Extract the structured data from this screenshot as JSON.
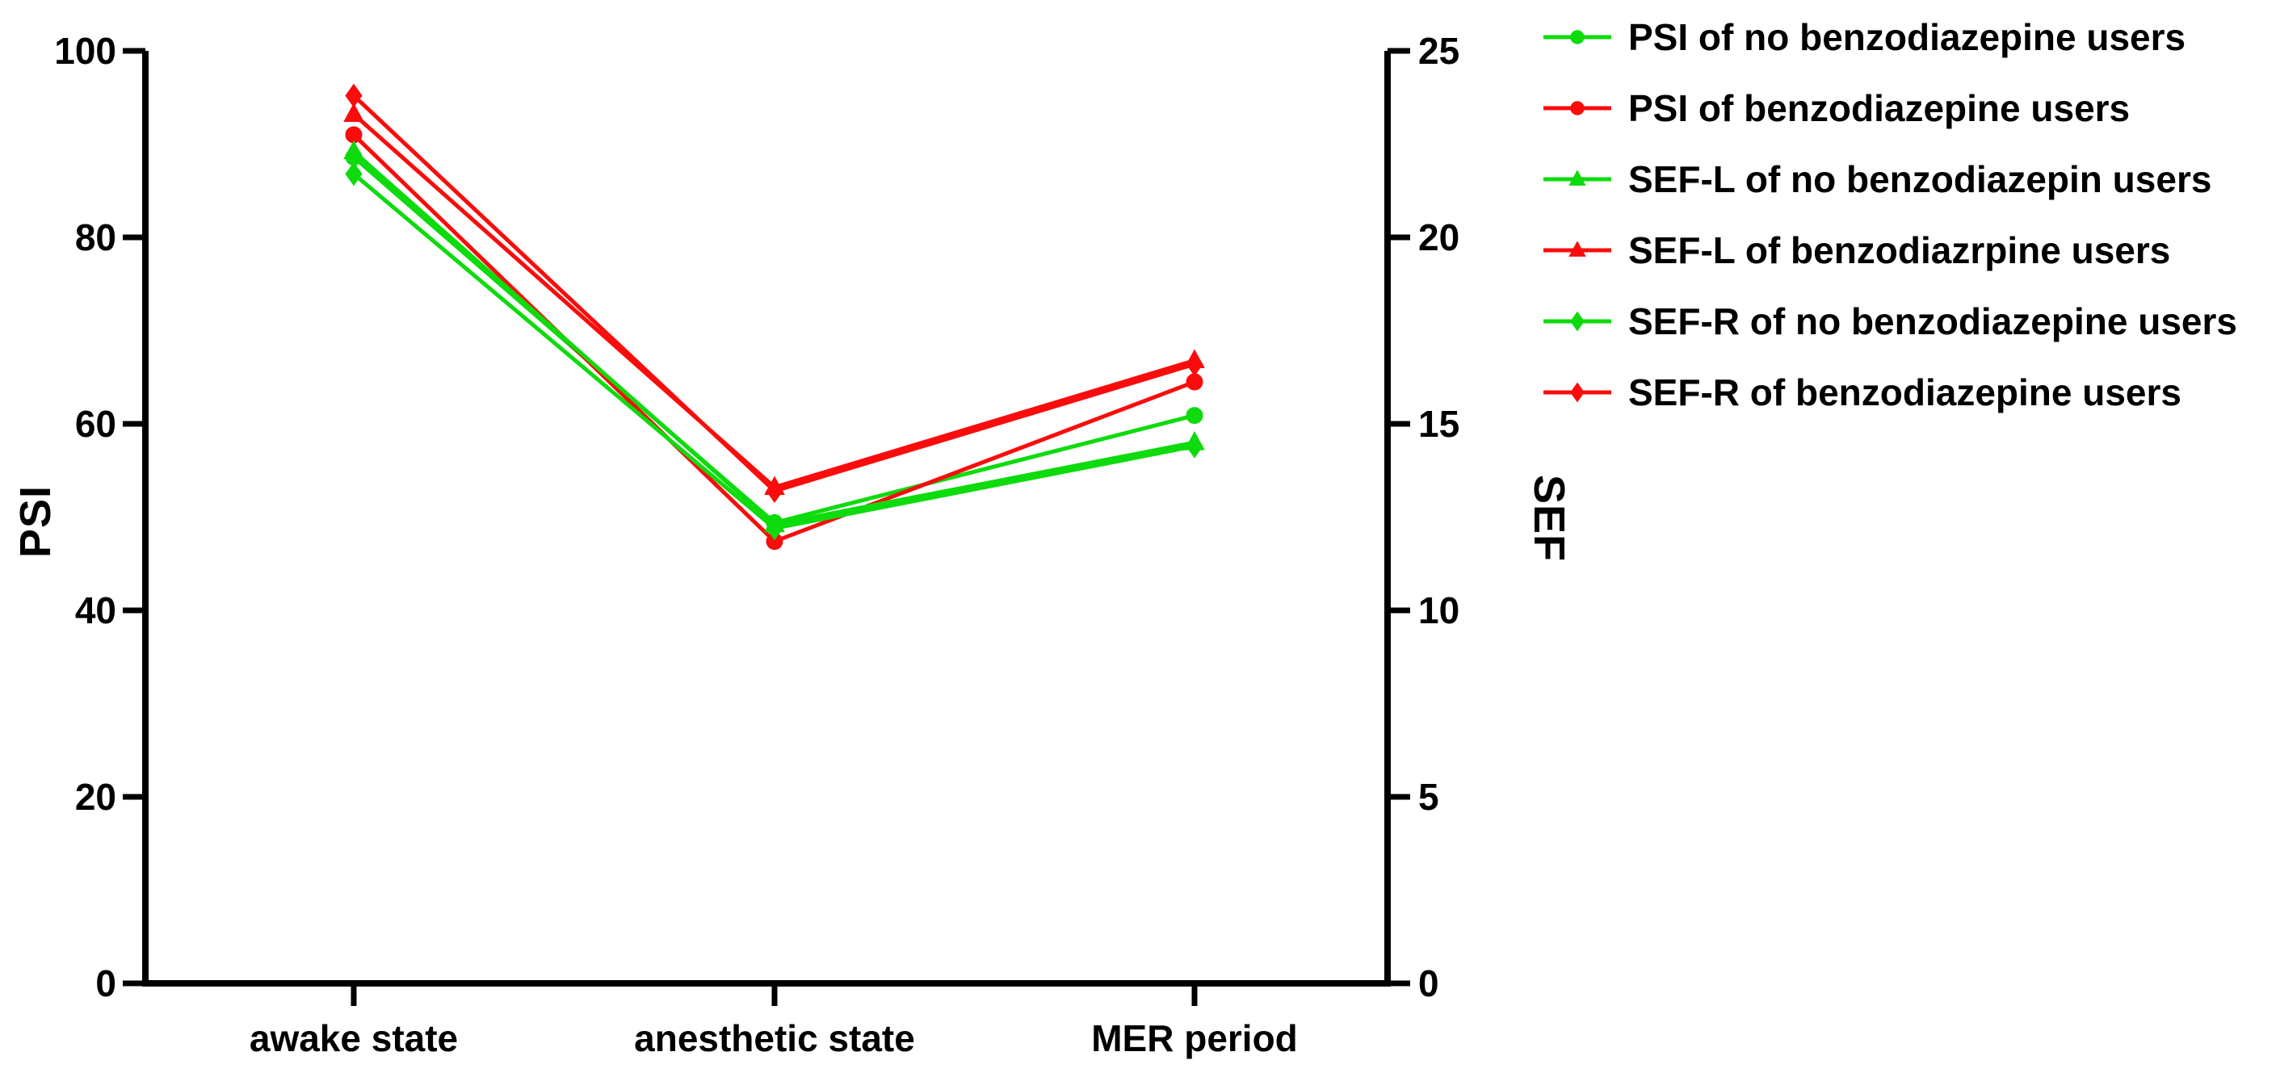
{
  "figure": {
    "background": "#FFFFFF",
    "text_color": "#000000",
    "axis_color": "#000000"
  },
  "chart_data": {
    "type": "line",
    "categories": [
      "awake state",
      "anesthetic state",
      "MER period"
    ],
    "left_axis": {
      "label": "PSI",
      "range": [
        0,
        100
      ],
      "ticks": [
        0,
        20,
        40,
        60,
        80,
        100
      ]
    },
    "right_axis": {
      "label": "SEF",
      "range": [
        0,
        25
      ],
      "ticks": [
        0,
        5,
        10,
        15,
        20,
        25
      ]
    },
    "grid": false,
    "legend_position": "top-right",
    "colors": {
      "no_benzodiazepine": "#0DDB0D",
      "benzodiazepine": "#FA0C0C"
    },
    "series": [
      {
        "name": "PSI of no benzodiazepine users",
        "axis": "left",
        "marker": "circle",
        "color": "#0DDB0D",
        "values": [
          88.6,
          49.4,
          60.9
        ]
      },
      {
        "name": "PSI of benzodiazepine users",
        "axis": "left",
        "marker": "circle",
        "color": "#FA0C0C",
        "values": [
          91.0,
          47.4,
          64.5
        ]
      },
      {
        "name": "SEF-L of no benzodiazepin users",
        "axis": "right",
        "marker": "triangle",
        "color": "#0DDB0D",
        "values": [
          22.3,
          12.3,
          14.5
        ]
      },
      {
        "name": "SEF-L of benzodiazrpine users",
        "axis": "right",
        "marker": "triangle",
        "color": "#FA0C0C",
        "values": [
          23.3,
          13.3,
          16.7
        ]
      },
      {
        "name": "SEF-R of no benzodiazepine users",
        "axis": "right",
        "marker": "diamond",
        "color": "#0DDB0D",
        "values": [
          21.7,
          12.2,
          14.4
        ]
      },
      {
        "name": "SEF-R of benzodiazepine users",
        "axis": "right",
        "marker": "diamond",
        "color": "#FA0C0C",
        "values": [
          23.8,
          13.2,
          16.6
        ]
      }
    ]
  }
}
